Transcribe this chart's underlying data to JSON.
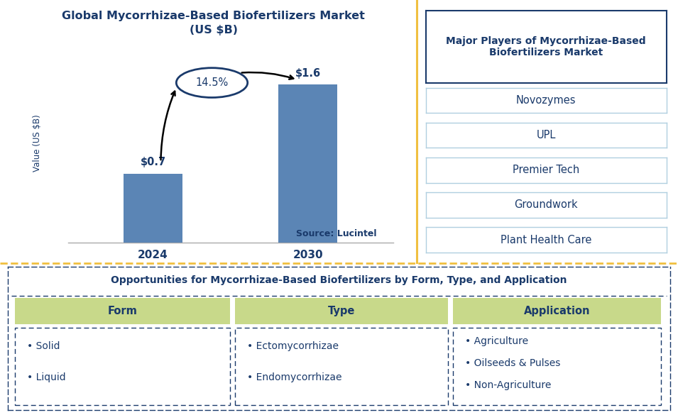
{
  "title_line1": "Global Mycorrhizae-Based Biofertilizers Market",
  "title_line2": "(US $B)",
  "title_color": "#1a3a6b",
  "bar_years": [
    "2024",
    "2030"
  ],
  "bar_values": [
    0.7,
    1.6
  ],
  "bar_labels": [
    "$0.7",
    "$1.6"
  ],
  "bar_color": "#5b85b5",
  "ylabel": "Value (US $B)",
  "cagr_text": "14.5%",
  "source_text": "Source: Lucintel",
  "divider_color": "#f0c040",
  "major_players_title": "Major Players of Mycorrhizae-Based\nBiofertilizers Market",
  "major_players": [
    "Novozymes",
    "UPL",
    "Premier Tech",
    "Groundwork",
    "Plant Health Care"
  ],
  "players_title_box_color": "#1a3a6b",
  "players_box_border_color": "#b0cfe0",
  "players_text_color": "#1a3a6b",
  "bottom_title": "Opportunities for Mycorrhizae-Based Biofertilizers by Form, Type, and Application",
  "bottom_title_color": "#1a3a6b",
  "columns": [
    "Form",
    "Type",
    "Application"
  ],
  "column_header_color": "#c8d98a",
  "column_header_text_color": "#1a3a6b",
  "form_items": [
    "Solid",
    "Liquid"
  ],
  "type_items": [
    "Ectomycorrhizae",
    "Endomycorrhizae"
  ],
  "application_items": [
    "Agriculture",
    "Oilseeds & Pulses",
    "Non-Agriculture"
  ],
  "items_text_color": "#1a3a6b",
  "bottom_border_color": "#1a3a6b",
  "background_color": "#ffffff"
}
